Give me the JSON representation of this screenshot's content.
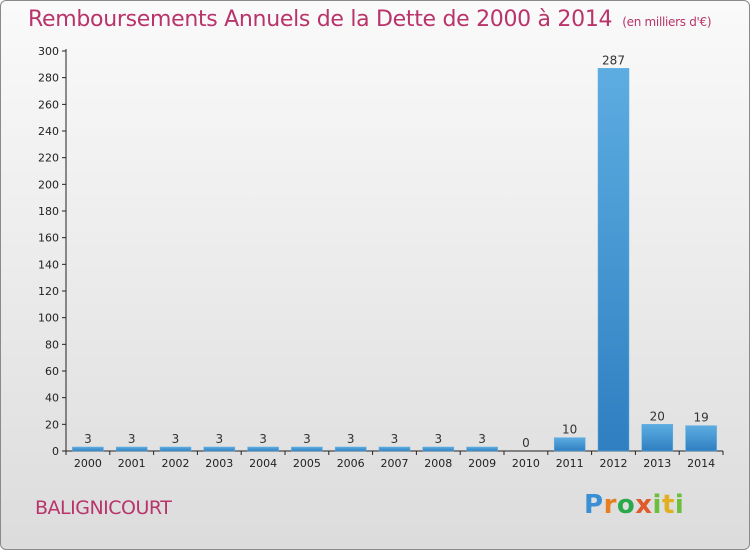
{
  "title": "Remboursements Annuels de la Dette de 2000 à 2014",
  "subtitle": "(en milliers d'€)",
  "commune": "BALIGNICOURT",
  "logo": {
    "p": "P",
    "r": "r",
    "o": "o",
    "x": "x",
    "i": "i",
    "t": "t",
    "i2": "i"
  },
  "colors": {
    "title": "#b8346a",
    "bar_light": "#5dade2",
    "bar_dark": "#2f7fc1"
  },
  "chart_data": {
    "type": "bar",
    "categories": [
      "2000",
      "2001",
      "2002",
      "2003",
      "2004",
      "2005",
      "2006",
      "2007",
      "2008",
      "2009",
      "2010",
      "2011",
      "2012",
      "2013",
      "2014"
    ],
    "values": [
      3,
      3,
      3,
      3,
      3,
      3,
      3,
      3,
      3,
      3,
      0,
      10,
      287,
      20,
      19
    ],
    "ylim": [
      0,
      300
    ],
    "yticks": [
      0,
      20,
      40,
      60,
      80,
      100,
      120,
      140,
      160,
      180,
      200,
      220,
      240,
      260,
      280,
      300
    ],
    "grid": false,
    "data_labels": true
  }
}
